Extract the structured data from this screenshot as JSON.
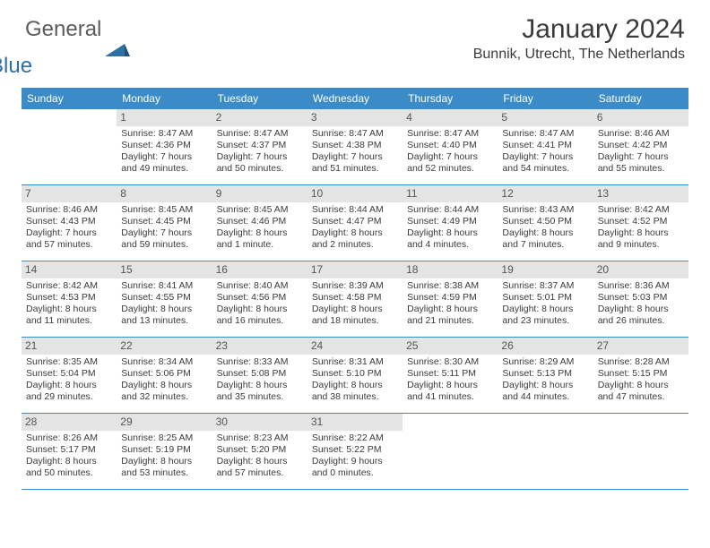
{
  "brand": {
    "part1": "General",
    "part2": "Blue",
    "color1": "#5c5c5c",
    "color2": "#2f6fa8"
  },
  "title": "January 2024",
  "location": "Bunnik, Utrecht, The Netherlands",
  "header_bg": "#3b8bc8",
  "header_fg": "#ffffff",
  "divider_color": "#3b8bc8",
  "daynum_bg": "#e4e4e4",
  "text_color": "#3a3a3a",
  "day_names": [
    "Sunday",
    "Monday",
    "Tuesday",
    "Wednesday",
    "Thursday",
    "Friday",
    "Saturday"
  ],
  "weeks": [
    [
      {
        "n": "",
        "sr": "",
        "ss": "",
        "dl1": "",
        "dl2": ""
      },
      {
        "n": "1",
        "sr": "Sunrise: 8:47 AM",
        "ss": "Sunset: 4:36 PM",
        "dl1": "Daylight: 7 hours",
        "dl2": "and 49 minutes."
      },
      {
        "n": "2",
        "sr": "Sunrise: 8:47 AM",
        "ss": "Sunset: 4:37 PM",
        "dl1": "Daylight: 7 hours",
        "dl2": "and 50 minutes."
      },
      {
        "n": "3",
        "sr": "Sunrise: 8:47 AM",
        "ss": "Sunset: 4:38 PM",
        "dl1": "Daylight: 7 hours",
        "dl2": "and 51 minutes."
      },
      {
        "n": "4",
        "sr": "Sunrise: 8:47 AM",
        "ss": "Sunset: 4:40 PM",
        "dl1": "Daylight: 7 hours",
        "dl2": "and 52 minutes."
      },
      {
        "n": "5",
        "sr": "Sunrise: 8:47 AM",
        "ss": "Sunset: 4:41 PM",
        "dl1": "Daylight: 7 hours",
        "dl2": "and 54 minutes."
      },
      {
        "n": "6",
        "sr": "Sunrise: 8:46 AM",
        "ss": "Sunset: 4:42 PM",
        "dl1": "Daylight: 7 hours",
        "dl2": "and 55 minutes."
      }
    ],
    [
      {
        "n": "7",
        "sr": "Sunrise: 8:46 AM",
        "ss": "Sunset: 4:43 PM",
        "dl1": "Daylight: 7 hours",
        "dl2": "and 57 minutes."
      },
      {
        "n": "8",
        "sr": "Sunrise: 8:45 AM",
        "ss": "Sunset: 4:45 PM",
        "dl1": "Daylight: 7 hours",
        "dl2": "and 59 minutes."
      },
      {
        "n": "9",
        "sr": "Sunrise: 8:45 AM",
        "ss": "Sunset: 4:46 PM",
        "dl1": "Daylight: 8 hours",
        "dl2": "and 1 minute."
      },
      {
        "n": "10",
        "sr": "Sunrise: 8:44 AM",
        "ss": "Sunset: 4:47 PM",
        "dl1": "Daylight: 8 hours",
        "dl2": "and 2 minutes."
      },
      {
        "n": "11",
        "sr": "Sunrise: 8:44 AM",
        "ss": "Sunset: 4:49 PM",
        "dl1": "Daylight: 8 hours",
        "dl2": "and 4 minutes."
      },
      {
        "n": "12",
        "sr": "Sunrise: 8:43 AM",
        "ss": "Sunset: 4:50 PM",
        "dl1": "Daylight: 8 hours",
        "dl2": "and 7 minutes."
      },
      {
        "n": "13",
        "sr": "Sunrise: 8:42 AM",
        "ss": "Sunset: 4:52 PM",
        "dl1": "Daylight: 8 hours",
        "dl2": "and 9 minutes."
      }
    ],
    [
      {
        "n": "14",
        "sr": "Sunrise: 8:42 AM",
        "ss": "Sunset: 4:53 PM",
        "dl1": "Daylight: 8 hours",
        "dl2": "and 11 minutes."
      },
      {
        "n": "15",
        "sr": "Sunrise: 8:41 AM",
        "ss": "Sunset: 4:55 PM",
        "dl1": "Daylight: 8 hours",
        "dl2": "and 13 minutes."
      },
      {
        "n": "16",
        "sr": "Sunrise: 8:40 AM",
        "ss": "Sunset: 4:56 PM",
        "dl1": "Daylight: 8 hours",
        "dl2": "and 16 minutes."
      },
      {
        "n": "17",
        "sr": "Sunrise: 8:39 AM",
        "ss": "Sunset: 4:58 PM",
        "dl1": "Daylight: 8 hours",
        "dl2": "and 18 minutes."
      },
      {
        "n": "18",
        "sr": "Sunrise: 8:38 AM",
        "ss": "Sunset: 4:59 PM",
        "dl1": "Daylight: 8 hours",
        "dl2": "and 21 minutes."
      },
      {
        "n": "19",
        "sr": "Sunrise: 8:37 AM",
        "ss": "Sunset: 5:01 PM",
        "dl1": "Daylight: 8 hours",
        "dl2": "and 23 minutes."
      },
      {
        "n": "20",
        "sr": "Sunrise: 8:36 AM",
        "ss": "Sunset: 5:03 PM",
        "dl1": "Daylight: 8 hours",
        "dl2": "and 26 minutes."
      }
    ],
    [
      {
        "n": "21",
        "sr": "Sunrise: 8:35 AM",
        "ss": "Sunset: 5:04 PM",
        "dl1": "Daylight: 8 hours",
        "dl2": "and 29 minutes."
      },
      {
        "n": "22",
        "sr": "Sunrise: 8:34 AM",
        "ss": "Sunset: 5:06 PM",
        "dl1": "Daylight: 8 hours",
        "dl2": "and 32 minutes."
      },
      {
        "n": "23",
        "sr": "Sunrise: 8:33 AM",
        "ss": "Sunset: 5:08 PM",
        "dl1": "Daylight: 8 hours",
        "dl2": "and 35 minutes."
      },
      {
        "n": "24",
        "sr": "Sunrise: 8:31 AM",
        "ss": "Sunset: 5:10 PM",
        "dl1": "Daylight: 8 hours",
        "dl2": "and 38 minutes."
      },
      {
        "n": "25",
        "sr": "Sunrise: 8:30 AM",
        "ss": "Sunset: 5:11 PM",
        "dl1": "Daylight: 8 hours",
        "dl2": "and 41 minutes."
      },
      {
        "n": "26",
        "sr": "Sunrise: 8:29 AM",
        "ss": "Sunset: 5:13 PM",
        "dl1": "Daylight: 8 hours",
        "dl2": "and 44 minutes."
      },
      {
        "n": "27",
        "sr": "Sunrise: 8:28 AM",
        "ss": "Sunset: 5:15 PM",
        "dl1": "Daylight: 8 hours",
        "dl2": "and 47 minutes."
      }
    ],
    [
      {
        "n": "28",
        "sr": "Sunrise: 8:26 AM",
        "ss": "Sunset: 5:17 PM",
        "dl1": "Daylight: 8 hours",
        "dl2": "and 50 minutes."
      },
      {
        "n": "29",
        "sr": "Sunrise: 8:25 AM",
        "ss": "Sunset: 5:19 PM",
        "dl1": "Daylight: 8 hours",
        "dl2": "and 53 minutes."
      },
      {
        "n": "30",
        "sr": "Sunrise: 8:23 AM",
        "ss": "Sunset: 5:20 PM",
        "dl1": "Daylight: 8 hours",
        "dl2": "and 57 minutes."
      },
      {
        "n": "31",
        "sr": "Sunrise: 8:22 AM",
        "ss": "Sunset: 5:22 PM",
        "dl1": "Daylight: 9 hours",
        "dl2": "and 0 minutes."
      },
      {
        "n": "",
        "sr": "",
        "ss": "",
        "dl1": "",
        "dl2": ""
      },
      {
        "n": "",
        "sr": "",
        "ss": "",
        "dl1": "",
        "dl2": ""
      },
      {
        "n": "",
        "sr": "",
        "ss": "",
        "dl1": "",
        "dl2": ""
      }
    ]
  ]
}
